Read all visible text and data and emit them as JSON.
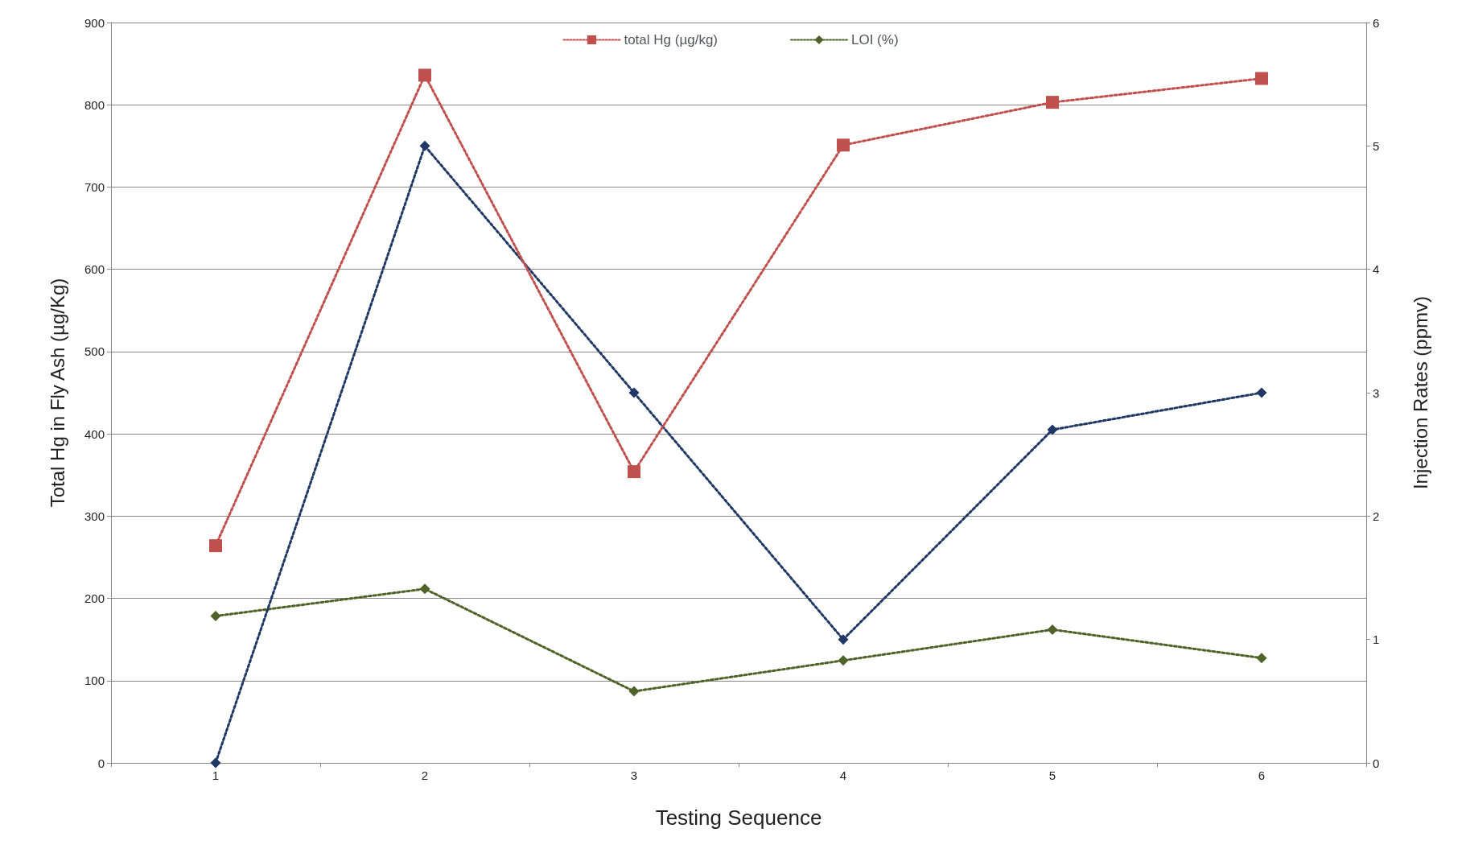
{
  "chart_data": {
    "type": "line",
    "xlabel": "Testing Sequence",
    "ylabel": "Total Hg in Fly Ash (µg/Kg)",
    "y2label": "Injection Rates (ppmv)",
    "categories": [
      "1",
      "2",
      "3",
      "4",
      "5",
      "6"
    ],
    "ylim": [
      0,
      900
    ],
    "yticks": [
      0,
      100,
      200,
      300,
      400,
      500,
      600,
      700,
      800,
      900
    ],
    "y2lim": [
      0,
      6
    ],
    "y2ticks": [
      0,
      1,
      2,
      3,
      4,
      5,
      6
    ],
    "grid": "y",
    "legend": "top",
    "line_style": "dotted",
    "series": [
      {
        "name": "total Hg (µg/kg)",
        "color": "#c0504d",
        "marker": "square",
        "values": [
          264,
          836,
          354,
          751,
          803,
          832
        ]
      },
      {
        "color": "#1f3864",
        "marker": "diamond",
        "axis": "y2",
        "values": [
          0,
          5,
          3,
          1,
          2.7,
          3
        ]
      },
      {
        "name": "LOI (%)",
        "color": "#4f6228",
        "marker": "diamond",
        "axis": "y2",
        "values": [
          1.19,
          1.41,
          0.58,
          0.83,
          1.08,
          0.85
        ]
      }
    ]
  }
}
